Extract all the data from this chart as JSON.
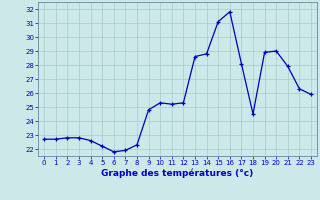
{
  "x": [
    0,
    1,
    2,
    3,
    4,
    5,
    6,
    7,
    8,
    9,
    10,
    11,
    12,
    13,
    14,
    15,
    16,
    17,
    18,
    19,
    20,
    21,
    22,
    23
  ],
  "y": [
    22.7,
    22.7,
    22.8,
    22.8,
    22.6,
    22.2,
    21.8,
    21.9,
    22.3,
    24.8,
    25.3,
    25.2,
    25.3,
    28.6,
    28.8,
    31.1,
    31.8,
    28.1,
    24.5,
    28.9,
    29.0,
    27.9,
    26.3,
    25.9
  ],
  "xlabel": "Graphe des températures (°c)",
  "ylabel_ticks": [
    22,
    23,
    24,
    25,
    26,
    27,
    28,
    29,
    30,
    31,
    32
  ],
  "ylim": [
    21.5,
    32.5
  ],
  "xlim": [
    -0.5,
    23.5
  ],
  "line_color": "#0000bb",
  "marker_color": "#0000bb",
  "bg_color": "#cce8e8",
  "grid_color": "#aacccc",
  "tick_label_color": "#0000cc",
  "xlabel_color": "#0000cc"
}
